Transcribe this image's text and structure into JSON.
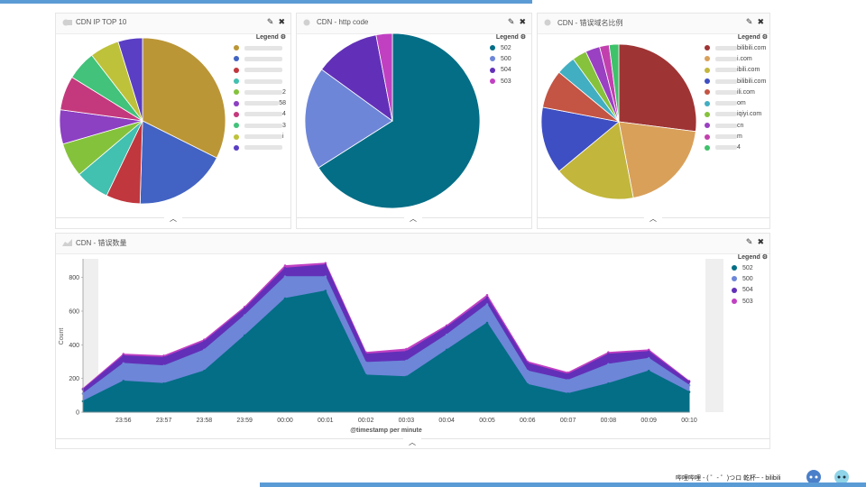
{
  "panels": {
    "top10": {
      "title": "CDN IP TOP 10",
      "legend_title": "Legend",
      "slices": [
        {
          "value": 34,
          "color": "#bb9636"
        },
        {
          "value": 19,
          "color": "#4263c3"
        },
        {
          "value": 7,
          "color": "#c0373e"
        },
        {
          "value": 7,
          "color": "#42c0b0"
        },
        {
          "value": 7,
          "color": "#85c23c"
        },
        {
          "value": 7,
          "color": "#8c40c2"
        },
        {
          "value": 7,
          "color": "#c4397d"
        },
        {
          "value": 6,
          "color": "#42c27a"
        },
        {
          "value": 6,
          "color": "#bec23a"
        },
        {
          "value": 5,
          "color": "#5a3ec4"
        }
      ],
      "legend_items": [
        {
          "label": "",
          "suffix": "",
          "color": "#bb9636"
        },
        {
          "label": "",
          "suffix": "",
          "color": "#4263c3"
        },
        {
          "label": "",
          "suffix": "",
          "color": "#c0373e"
        },
        {
          "label": "",
          "suffix": "",
          "color": "#42c0b0"
        },
        {
          "label": "",
          "suffix": "2",
          "color": "#85c23c"
        },
        {
          "label": "",
          "suffix": "58",
          "color": "#8c40c2"
        },
        {
          "label": "",
          "suffix": "4",
          "color": "#c4397d"
        },
        {
          "label": "",
          "suffix": "3",
          "color": "#42c27a"
        },
        {
          "label": "",
          "suffix": "i",
          "color": "#bec23a"
        },
        {
          "label": "",
          "suffix": "",
          "color": "#5a3ec4"
        }
      ]
    },
    "http": {
      "title": "CDN - http code",
      "legend_title": "Legend",
      "slices": [
        {
          "label": "502",
          "value": 66,
          "color": "#046e86"
        },
        {
          "label": "500",
          "value": 19,
          "color": "#6d86d8"
        },
        {
          "label": "504",
          "value": 12,
          "color": "#6230b8"
        },
        {
          "label": "503",
          "value": 3,
          "color": "#c140c2"
        }
      ]
    },
    "domain": {
      "title": "CDN - 错误域名比例",
      "legend_title": "Legend",
      "slices": [
        {
          "value": 27,
          "color": "#9f3434"
        },
        {
          "value": 20,
          "color": "#d9a05a"
        },
        {
          "value": 17,
          "color": "#c2b63c"
        },
        {
          "value": 14,
          "color": "#3e4fc3"
        },
        {
          "value": 8,
          "color": "#c45443"
        },
        {
          "value": 4,
          "color": "#42aec2"
        },
        {
          "value": 3,
          "color": "#86c23c"
        },
        {
          "value": 3,
          "color": "#9a40c2"
        },
        {
          "value": 2,
          "color": "#c240ae"
        },
        {
          "value": 2,
          "color": "#3ec26a"
        }
      ],
      "legend_items": [
        {
          "label": "bilibili.com",
          "color": "#9f3434"
        },
        {
          "label": "i.com",
          "color": "#d9a05a"
        },
        {
          "label": "ibili.com",
          "color": "#c2b63c"
        },
        {
          "label": "bilibili.com",
          "color": "#3e4fc3"
        },
        {
          "label": "ili.com",
          "color": "#c45443"
        },
        {
          "label": "om",
          "color": "#42aec2"
        },
        {
          "label": "iqiyi.com",
          "color": "#86c23c"
        },
        {
          "label": "cn",
          "color": "#9a40c2"
        },
        {
          "label": "m",
          "color": "#c240ae"
        },
        {
          "label": "4",
          "color": "#3ec26a"
        }
      ]
    },
    "errors": {
      "title": "CDN - 错误数量",
      "legend_title": "Legend",
      "legend_items": [
        {
          "label": "502",
          "color": "#046e86"
        },
        {
          "label": "500",
          "color": "#6d86d8"
        },
        {
          "label": "504",
          "color": "#6230b8"
        },
        {
          "label": "503",
          "color": "#c140c2"
        }
      ]
    }
  },
  "chart_data": {
    "type": "area",
    "stacked": true,
    "title": "CDN - 错误数量",
    "xlabel": "@timestamp per minute",
    "ylabel": "Count",
    "ylim": [
      0,
      900
    ],
    "yticks": [
      0,
      200,
      400,
      600,
      800
    ],
    "x": [
      "23:55",
      "23:56",
      "23:57",
      "23:58",
      "23:59",
      "00:00",
      "00:01",
      "00:02",
      "00:03",
      "00:04",
      "00:05",
      "00:06",
      "00:07",
      "00:08",
      "00:09",
      "00:10"
    ],
    "xtick_labels": [
      "23:56",
      "23:57",
      "23:58",
      "23:59",
      "00:00",
      "00:01",
      "00:02",
      "00:03",
      "00:04",
      "00:05",
      "00:06",
      "00:07",
      "00:08",
      "00:09",
      "00:10"
    ],
    "series": [
      {
        "name": "502",
        "color": "#046e86",
        "values": [
          65,
          185,
          170,
          245,
          455,
          675,
          720,
          220,
          210,
          370,
          530,
          165,
          110,
          170,
          245,
          120
        ]
      },
      {
        "name": "500",
        "color": "#6d86d8",
        "values": [
          45,
          105,
          105,
          125,
          120,
          130,
          85,
          75,
          95,
          90,
          110,
          80,
          80,
          115,
          75,
          40
        ]
      },
      {
        "name": "504",
        "color": "#6230b8",
        "values": [
          25,
          45,
          50,
          50,
          40,
          50,
          70,
          50,
          55,
          45,
          40,
          45,
          35,
          60,
          40,
          20
        ]
      },
      {
        "name": "503",
        "color": "#c140c2",
        "values": [
          5,
          10,
          10,
          10,
          10,
          15,
          10,
          10,
          15,
          10,
          15,
          10,
          10,
          10,
          10,
          5
        ]
      }
    ],
    "grid": false,
    "legend_position": "right"
  },
  "footer": {
    "text": "哔哩哔哩 - ( ゜- ゜)つロ 乾杯~ - bilibili"
  }
}
